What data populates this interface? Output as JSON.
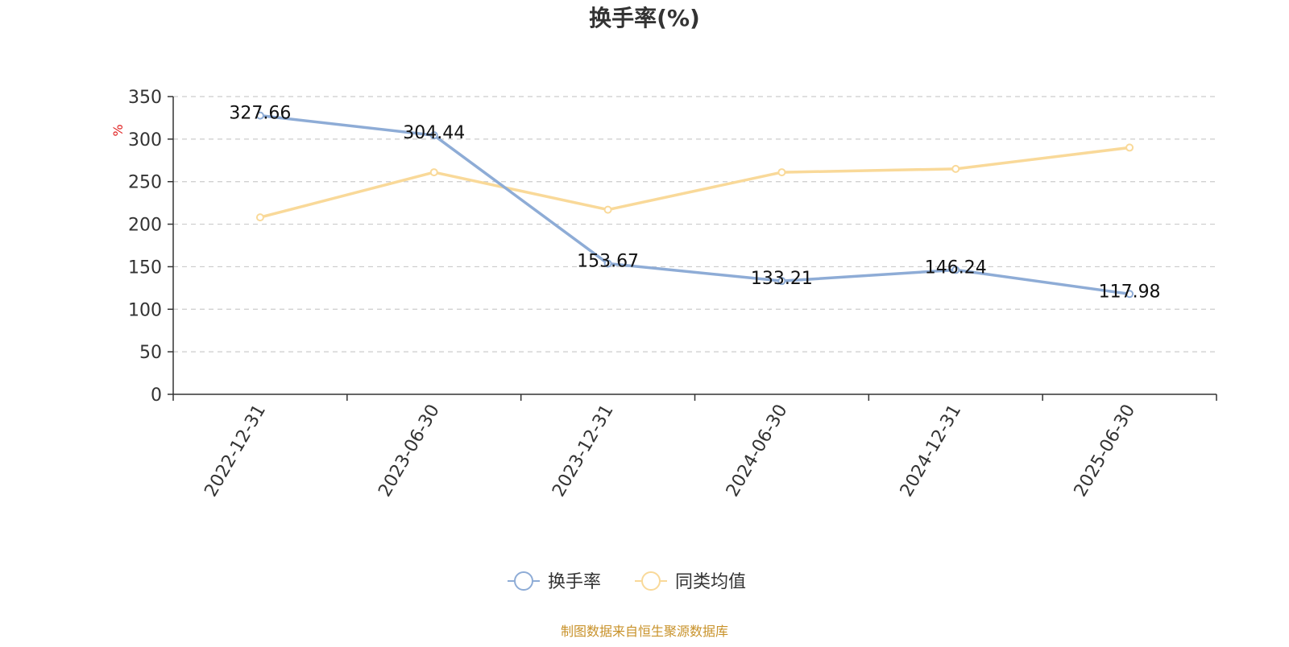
{
  "chart_data": {
    "type": "line",
    "title": "换手率(%)",
    "ylabel": "%",
    "xlabel": "",
    "categories": [
      "2022-12-31",
      "2023-06-30",
      "2023-12-31",
      "2024-06-30",
      "2024-12-31",
      "2025-06-30"
    ],
    "ylim": [
      0,
      350
    ],
    "yticks": [
      0,
      50,
      100,
      150,
      200,
      250,
      300,
      350
    ],
    "grid": true,
    "legend_position": "bottom-center",
    "series": [
      {
        "name": "换手率",
        "values": [
          327.66,
          304.44,
          153.67,
          133.21,
          146.24,
          117.98
        ],
        "labels": [
          "327.66",
          "304.44",
          "153.67",
          "133.21",
          "146.24",
          "117.98"
        ],
        "color": "#8eacd6"
      },
      {
        "name": "同类均值",
        "values": [
          208,
          261,
          217,
          261,
          265,
          290
        ],
        "color": "#f9d999"
      }
    ]
  },
  "footer": {
    "source": "制图数据来自恒生聚源数据库",
    "source_color": "#c8922a"
  },
  "colors": {
    "ylabel": "#e02020",
    "axis": "#333333",
    "grid": "#cccccc",
    "title": "#333333"
  }
}
